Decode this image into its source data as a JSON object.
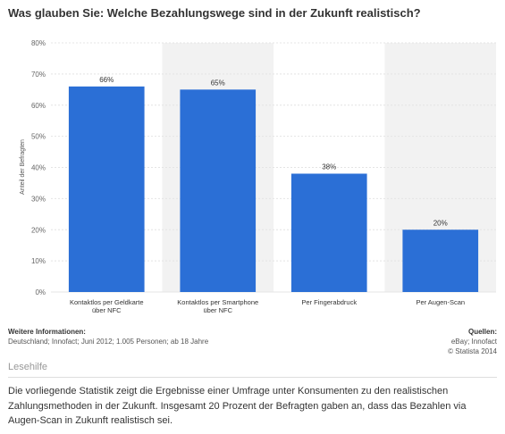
{
  "title": "Was glauben Sie: Welche Bezahlungswege sind in der Zukunft realistisch?",
  "colors": {
    "bar": "#2b6fd6",
    "shaded_band": "#f2f2f2",
    "grid": "#e4e4e4"
  },
  "chart_data": {
    "type": "bar",
    "categories": [
      [
        "Kontaktlos per Geldkarte",
        "über NFC"
      ],
      [
        "Kontaktlos per Smartphone",
        "über NFC"
      ],
      [
        "Per Fingerabdruck"
      ],
      [
        "Per Augen-Scan"
      ]
    ],
    "values": [
      66,
      65,
      38,
      20
    ],
    "data_labels": [
      "66%",
      "65%",
      "38%",
      "20%"
    ],
    "ylabel": "Anteil der Befragten",
    "ylim": [
      0,
      80
    ],
    "yticks": [
      0,
      10,
      20,
      30,
      40,
      50,
      60,
      70,
      80
    ],
    "ytick_labels": [
      "0%",
      "10%",
      "20%",
      "30%",
      "40%",
      "50%",
      "60%",
      "70%",
      "80%"
    ],
    "grid": true,
    "alternate_shading": true
  },
  "info": {
    "left_title": "Weitere Informationen:",
    "left_text": "Deutschland; Innofact; Juni 2012; 1.005 Personen; ab 18 Jahre",
    "right_title": "Quellen:",
    "right_lines": [
      "eBay; Innofact",
      "© Statista 2014"
    ]
  },
  "lesehilfe": {
    "title": "Lesehilfe",
    "text": "Die vorliegende Statistik zeigt die Ergebnisse einer Umfrage unter Konsumenten zu den realistischen Zahlungsmethoden in der Zukunft. Insgesamt 20 Prozent der Befragten gaben an, dass das Bezahlen via Augen-Scan in Zukunft realistisch sei."
  }
}
